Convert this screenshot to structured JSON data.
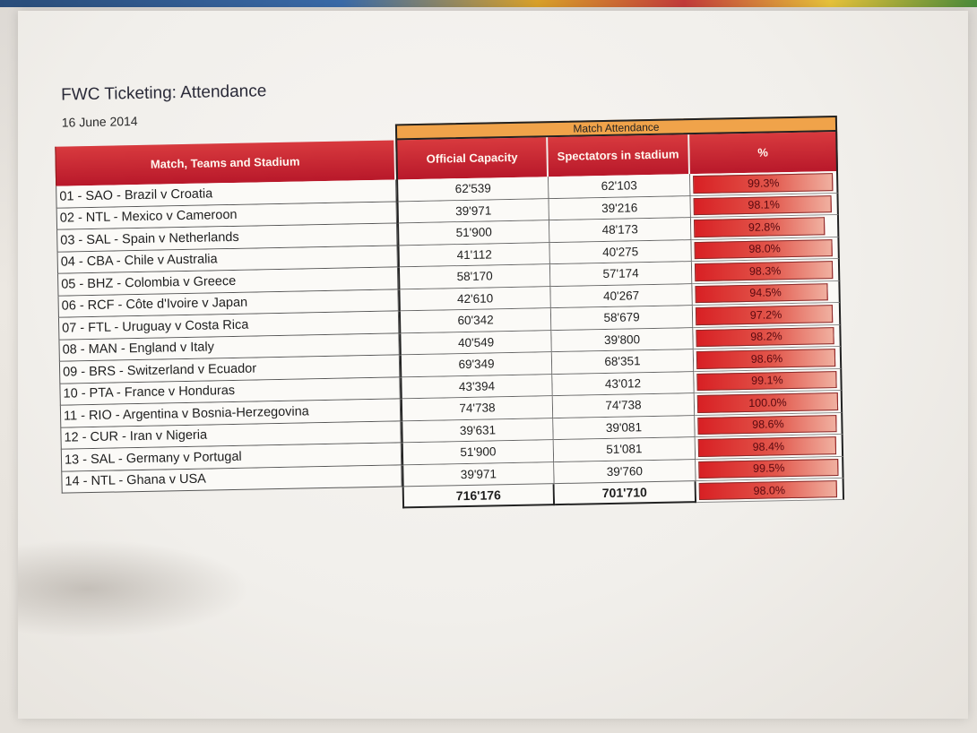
{
  "document": {
    "title": "FWC Ticketing: Attendance",
    "date": "16 June 2014"
  },
  "table": {
    "group_header": "Match Attendance",
    "columns": [
      "Match, Teams and Stadium",
      "Official Capacity",
      "Spectators in stadium",
      "%"
    ],
    "rows": [
      {
        "match": "01 - SAO - Brazil v Croatia",
        "capacity": "62'539",
        "spectators": "62'103",
        "percent": "99.3%",
        "fill": 0.993
      },
      {
        "match": "02 - NTL - Mexico v Cameroon",
        "capacity": "39'971",
        "spectators": "39'216",
        "percent": "98.1%",
        "fill": 0.981
      },
      {
        "match": "03 - SAL - Spain v Netherlands",
        "capacity": "51'900",
        "spectators": "48'173",
        "percent": "92.8%",
        "fill": 0.928
      },
      {
        "match": "04 - CBA - Chile v Australia",
        "capacity": "41'112",
        "spectators": "40'275",
        "percent": "98.0%",
        "fill": 0.98
      },
      {
        "match": "05 - BHZ - Colombia v Greece",
        "capacity": "58'170",
        "spectators": "57'174",
        "percent": "98.3%",
        "fill": 0.983
      },
      {
        "match": "06 - RCF - Côte d'Ivoire v Japan",
        "capacity": "42'610",
        "spectators": "40'267",
        "percent": "94.5%",
        "fill": 0.945
      },
      {
        "match": "07 - FTL - Uruguay v Costa Rica",
        "capacity": "60'342",
        "spectators": "58'679",
        "percent": "97.2%",
        "fill": 0.972
      },
      {
        "match": "08 - MAN - England v Italy",
        "capacity": "40'549",
        "spectators": "39'800",
        "percent": "98.2%",
        "fill": 0.982
      },
      {
        "match": "09 - BRS - Switzerland v Ecuador",
        "capacity": "69'349",
        "spectators": "68'351",
        "percent": "98.6%",
        "fill": 0.986
      },
      {
        "match": "10 - PTA - France v Honduras",
        "capacity": "43'394",
        "spectators": "43'012",
        "percent": "99.1%",
        "fill": 0.991
      },
      {
        "match": "11 - RIO - Argentina v Bosnia-Herzegovina",
        "capacity": "74'738",
        "spectators": "74'738",
        "percent": "100.0%",
        "fill": 1.0
      },
      {
        "match": "12 - CUR - Iran v Nigeria",
        "capacity": "39'631",
        "spectators": "39'081",
        "percent": "98.6%",
        "fill": 0.986
      },
      {
        "match": "13 - SAL - Germany v Portugal",
        "capacity": "51'900",
        "spectators": "51'081",
        "percent": "98.4%",
        "fill": 0.984
      },
      {
        "match": "14 - NTL - Ghana v USA",
        "capacity": "39'971",
        "spectators": "39'760",
        "percent": "99.5%",
        "fill": 0.995
      }
    ],
    "totals": {
      "capacity": "716'176",
      "spectators": "701'710",
      "percent": "98.0%",
      "fill": 0.98
    }
  },
  "colors": {
    "header_red": "#c8202c",
    "group_orange": "#f0a34a",
    "bar_red": "#d82024"
  }
}
